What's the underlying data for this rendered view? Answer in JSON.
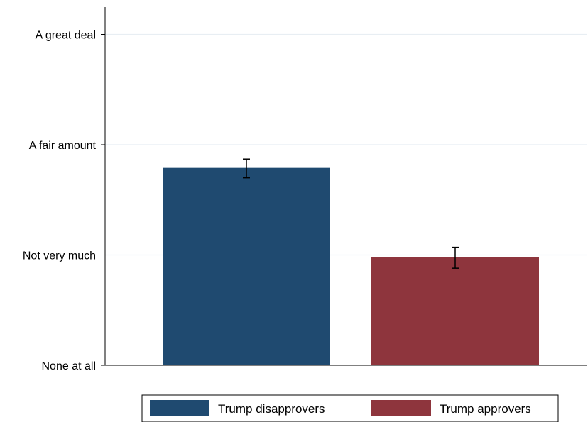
{
  "chart_data": {
    "type": "bar",
    "title": "",
    "xlabel": "",
    "ylabel": "",
    "y_tick_labels": [
      "None at all",
      "Not very much",
      "A fair amount",
      "A great deal"
    ],
    "ylim": [
      1,
      4.05
    ],
    "grid": true,
    "legend_position": "bottom",
    "series": [
      {
        "name": "Trump disapprovers",
        "value": 2.79,
        "ci_low": 2.7,
        "ci_high": 2.87,
        "color": "#1f4a70"
      },
      {
        "name": "Trump approvers",
        "value": 1.98,
        "ci_low": 1.88,
        "ci_high": 2.07,
        "color": "#8e353d"
      }
    ]
  }
}
